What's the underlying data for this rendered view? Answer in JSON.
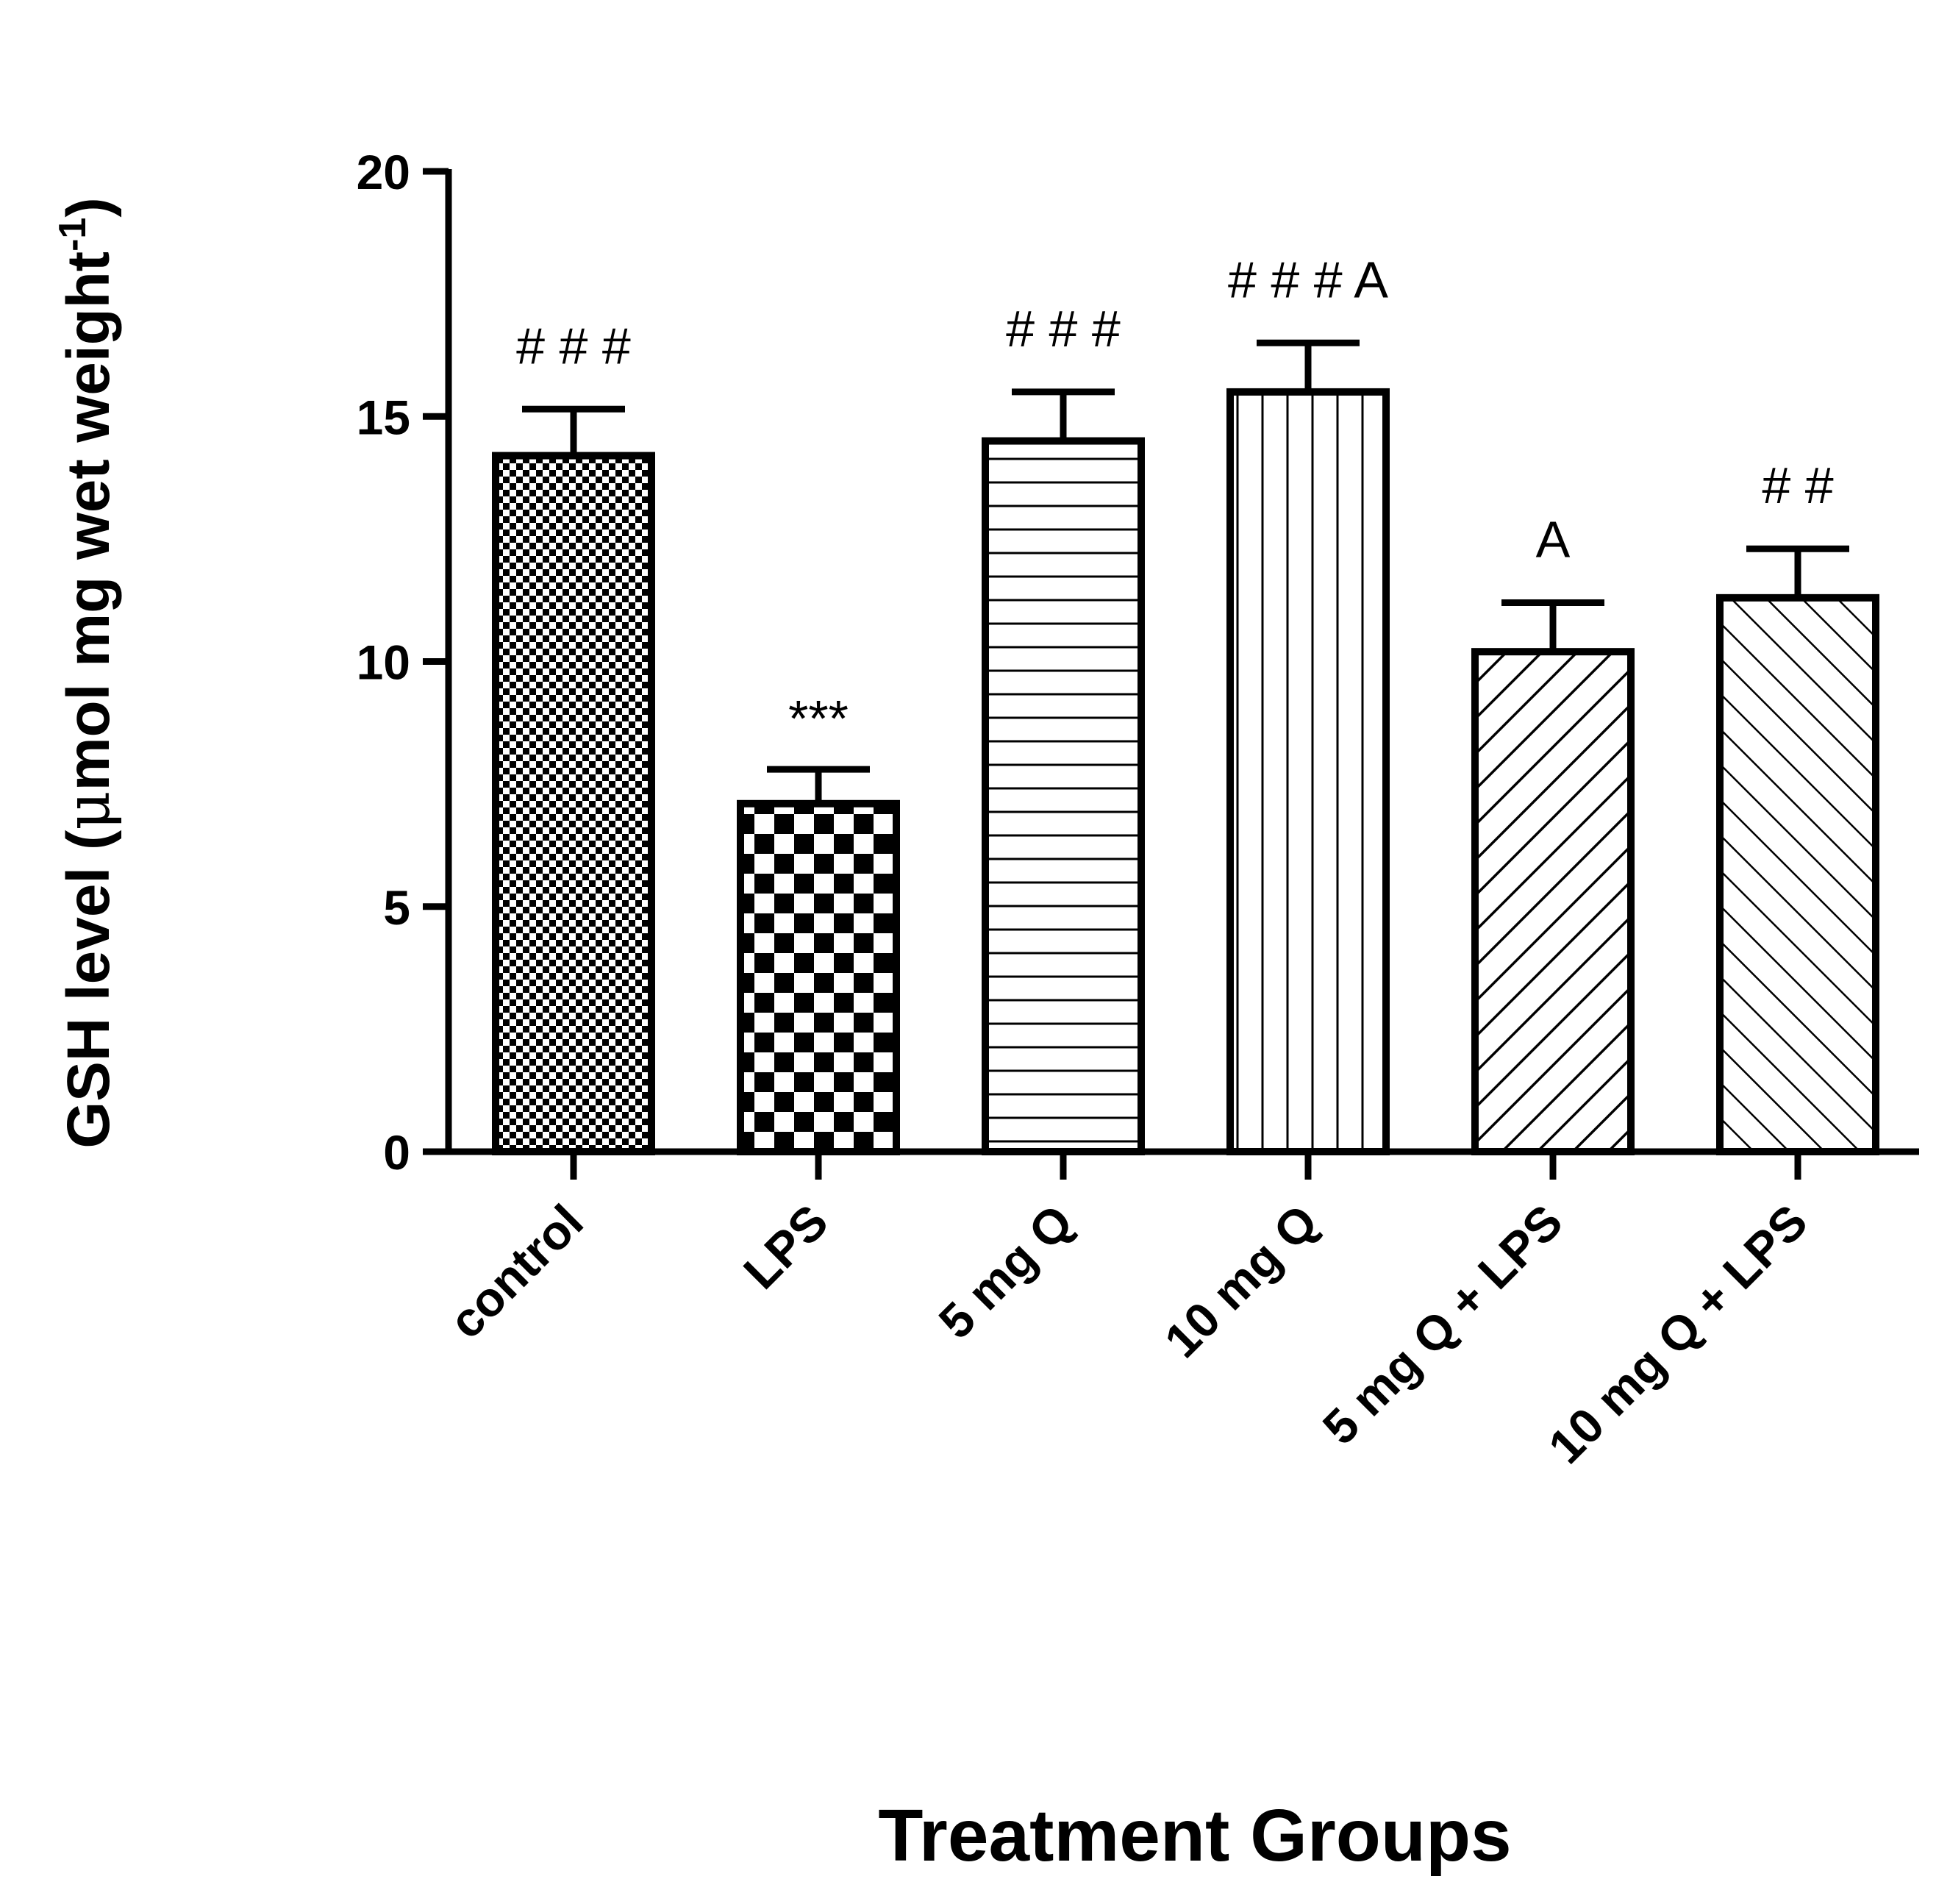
{
  "chart_data": {
    "type": "bar",
    "title": "",
    "xlabel": "Treatment Groups",
    "ylabel": {
      "prefix": "GSH level (",
      "mu": "μ",
      "main": "mol mg wet weight",
      "superscript": "-1",
      "suffix": ")"
    },
    "ylim": [
      0,
      20
    ],
    "yticks": [
      {
        "value": 0,
        "label": "0"
      },
      {
        "value": 5,
        "label": "5"
      },
      {
        "value": 10,
        "label": "10"
      },
      {
        "value": 15,
        "label": "15"
      },
      {
        "value": 20,
        "label": "20"
      }
    ],
    "categories": [
      "control",
      "LPS",
      "5 mg Q",
      "10 mg Q",
      "5 mg Q + LPS",
      "10 mg Q + LPS"
    ],
    "values": [
      14.2,
      7.1,
      14.5,
      15.5,
      10.2,
      11.3
    ],
    "errors": [
      0.95,
      0.7,
      1.0,
      1.0,
      1.0,
      1.0
    ],
    "annotations": [
      "# # #",
      "***",
      "# # #",
      "# # # A",
      "A",
      "# #"
    ],
    "patterns": [
      "fine-checker",
      "coarse-checker",
      "horizontal-lines",
      "vertical-lines",
      "diagonal-right",
      "diagonal-left"
    ],
    "grid": false,
    "legend": "none"
  },
  "colors": {
    "ink": "#000000",
    "background": "#ffffff"
  }
}
